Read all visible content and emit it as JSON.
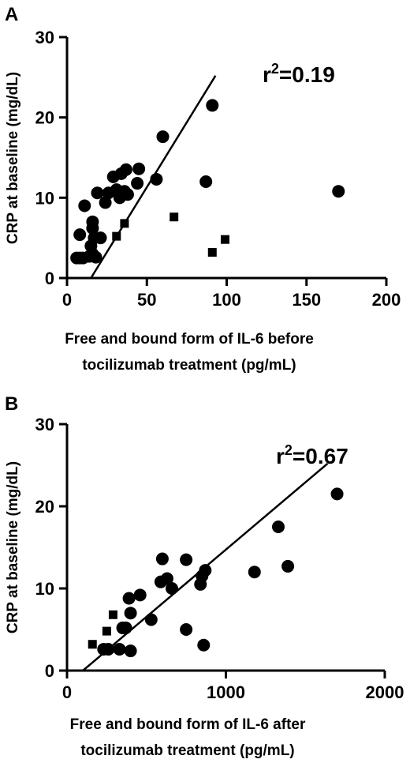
{
  "chart_data": [
    {
      "panel": "A",
      "type": "scatter",
      "annotation": "r²=0.19",
      "ylabel": "CRP at baseline (mg/dL)",
      "xlabel_lines": [
        "Free and bound form of IL-6 before",
        "tocilizumab treatment (pg/mL)"
      ],
      "xlim": [
        0,
        200
      ],
      "ylim": [
        0,
        30
      ],
      "xticks": [
        0,
        50,
        100,
        150,
        200
      ],
      "yticks": [
        0,
        10,
        20,
        30
      ],
      "series": [
        {
          "marker": "circle",
          "points": [
            [
              6,
              2.5
            ],
            [
              8,
              5.4
            ],
            [
              8,
              2.5
            ],
            [
              10,
              2.5
            ],
            [
              11,
              9
            ],
            [
              14,
              2.7
            ],
            [
              16,
              3
            ],
            [
              15,
              4
            ],
            [
              16,
              6.2
            ],
            [
              16,
              7
            ],
            [
              17,
              5
            ],
            [
              18,
              2.6
            ],
            [
              19,
              10.6
            ],
            [
              21,
              5
            ],
            [
              24,
              9.4
            ],
            [
              26,
              10.6
            ],
            [
              29,
              12.6
            ],
            [
              31,
              11
            ],
            [
              33,
              10
            ],
            [
              34,
              13
            ],
            [
              36,
              10.8
            ],
            [
              37,
              13.5
            ],
            [
              38,
              10.4
            ],
            [
              44,
              11.8
            ],
            [
              45,
              13.6
            ],
            [
              56,
              12.3
            ],
            [
              60,
              17.6
            ],
            [
              87,
              12
            ],
            [
              91,
              21.5
            ],
            [
              170,
              10.8
            ]
          ]
        },
        {
          "marker": "square",
          "points": [
            [
              31,
              5.2
            ],
            [
              36,
              6.8
            ],
            [
              67,
              7.6
            ],
            [
              91,
              3.2
            ],
            [
              99,
              4.8
            ]
          ]
        }
      ],
      "fit_line": [
        [
          15,
          0
        ],
        [
          93,
          25.2
        ]
      ]
    },
    {
      "panel": "B",
      "type": "scatter",
      "annotation": "r²=0.67",
      "ylabel": "CRP at baseline (mg/dL)",
      "xlabel_lines": [
        "Free and bound form of IL-6 after",
        "tocilizumab treatment (pg/mL)"
      ],
      "xlim": [
        0,
        2000
      ],
      "ylim": [
        0,
        30
      ],
      "xticks": [
        0,
        1000,
        2000
      ],
      "yticks": [
        0,
        10,
        20,
        30
      ],
      "series": [
        {
          "marker": "circle",
          "points": [
            [
              230,
              2.6
            ],
            [
              260,
              2.6
            ],
            [
              330,
              2.6
            ],
            [
              350,
              5.2
            ],
            [
              370,
              5.2
            ],
            [
              390,
              8.8
            ],
            [
              400,
              7
            ],
            [
              400,
              2.4
            ],
            [
              460,
              9.2
            ],
            [
              530,
              6.2
            ],
            [
              590,
              10.8
            ],
            [
              600,
              13.6
            ],
            [
              630,
              11.2
            ],
            [
              660,
              10
            ],
            [
              750,
              13.5
            ],
            [
              750,
              5
            ],
            [
              840,
              10.5
            ],
            [
              850,
              11.5
            ],
            [
              860,
              3.1
            ],
            [
              870,
              12.2
            ],
            [
              1180,
              12
            ],
            [
              1330,
              17.5
            ],
            [
              1390,
              12.7
            ],
            [
              1700,
              21.5
            ]
          ]
        },
        {
          "marker": "square",
          "points": [
            [
              160,
              3.2
            ],
            [
              250,
              4.8
            ],
            [
              290,
              6.8
            ]
          ]
        }
      ],
      "fit_line": [
        [
          100,
          0
        ],
        [
          1640,
          25.2
        ]
      ]
    }
  ]
}
